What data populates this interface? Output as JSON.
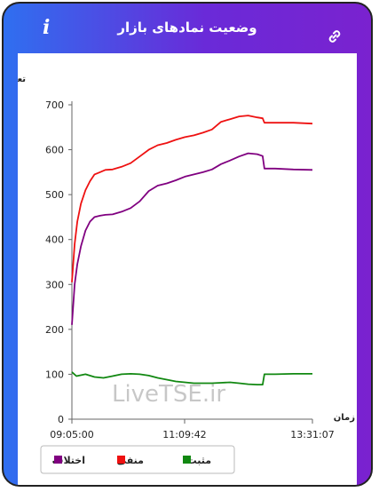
{
  "header": {
    "title": "وضعیت نمادهای بازار",
    "info_icon": "info-icon",
    "link_icon": "link-icon"
  },
  "watermark": "LiveTSE.ir",
  "colors": {
    "negative": "#ee1111",
    "mixed": "#800080",
    "positive": "#118811",
    "frame_left": "#2f6ff0",
    "frame_right": "#7a22cf"
  },
  "chart_data": {
    "type": "line",
    "title": "",
    "ylabel": "تعداد نماد",
    "xlabel": "زمان",
    "ylim": [
      0,
      700
    ],
    "yticks": [
      0,
      100,
      200,
      300,
      400,
      500,
      600,
      700
    ],
    "xlim": [
      "09:05:00",
      "13:31:07"
    ],
    "xticks": [
      "09:05:00",
      "11:09:42",
      "13:31:07"
    ],
    "grid": false,
    "legend": "bottom",
    "series": [
      {
        "name": "منفی",
        "color": "#ee1111",
        "x": [
          "09:05:00",
          "09:08:00",
          "09:11:00",
          "09:15:00",
          "09:20:00",
          "09:25:00",
          "09:30:00",
          "09:36:00",
          "09:42:00",
          "09:50:00",
          "10:00:00",
          "10:10:00",
          "10:20:00",
          "10:30:00",
          "10:40:00",
          "10:50:00",
          "11:00:00",
          "11:10:00",
          "11:20:00",
          "11:30:00",
          "11:40:00",
          "11:50:00",
          "12:00:00",
          "12:10:00",
          "12:20:00",
          "12:30:00",
          "12:36:00",
          "12:38:00",
          "12:50:00",
          "13:10:00",
          "13:31:07"
        ],
        "values": [
          305,
          390,
          440,
          480,
          510,
          530,
          545,
          550,
          555,
          556,
          562,
          570,
          585,
          600,
          610,
          615,
          622,
          628,
          632,
          638,
          645,
          662,
          668,
          674,
          676,
          672,
          670,
          660,
          660,
          660,
          658
        ]
      },
      {
        "name": "اختلاف",
        "color": "#800080",
        "x": [
          "09:05:00",
          "09:08:00",
          "09:11:00",
          "09:15:00",
          "09:20:00",
          "09:25:00",
          "09:30:00",
          "09:36:00",
          "09:42:00",
          "09:50:00",
          "10:00:00",
          "10:10:00",
          "10:20:00",
          "10:30:00",
          "10:40:00",
          "10:50:00",
          "11:00:00",
          "11:10:00",
          "11:20:00",
          "11:30:00",
          "11:40:00",
          "11:50:00",
          "12:00:00",
          "12:10:00",
          "12:20:00",
          "12:30:00",
          "12:36:00",
          "12:38:00",
          "12:50:00",
          "13:10:00",
          "13:31:07"
        ],
        "values": [
          210,
          300,
          345,
          385,
          420,
          440,
          450,
          453,
          455,
          456,
          462,
          470,
          485,
          508,
          520,
          525,
          532,
          540,
          545,
          550,
          556,
          568,
          576,
          585,
          592,
          590,
          586,
          558,
          558,
          556,
          555
        ]
      },
      {
        "name": "مثبت",
        "color": "#118811",
        "x": [
          "09:05:00",
          "09:10:00",
          "09:20:00",
          "09:30:00",
          "09:40:00",
          "09:50:00",
          "10:00:00",
          "10:10:00",
          "10:20:00",
          "10:30:00",
          "10:40:00",
          "10:50:00",
          "11:00:00",
          "11:10:00",
          "11:20:00",
          "11:30:00",
          "11:40:00",
          "11:50:00",
          "12:00:00",
          "12:10:00",
          "12:20:00",
          "12:30:00",
          "12:36:00",
          "12:38:00",
          "12:50:00",
          "13:10:00",
          "13:31:07"
        ],
        "values": [
          105,
          96,
          100,
          94,
          92,
          96,
          100,
          101,
          100,
          97,
          92,
          88,
          84,
          82,
          80,
          80,
          80,
          81,
          82,
          80,
          78,
          77,
          77,
          100,
          100,
          101,
          101
        ]
      }
    ]
  }
}
